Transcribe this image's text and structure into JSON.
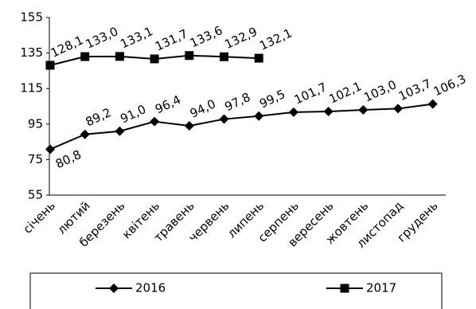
{
  "chart_data": {
    "type": "line",
    "categories": [
      "січень",
      "лютий",
      "березень",
      "квітень",
      "травень",
      "червень",
      "липень",
      "серпень",
      "вересень",
      "жовтень",
      "листопад",
      "грудень"
    ],
    "series": [
      {
        "name": "2016",
        "color": "#000000",
        "marker": "diamond",
        "values": [
          80.8,
          89.2,
          91.0,
          96.4,
          94.0,
          97.8,
          99.5,
          101.7,
          102.1,
          103.0,
          103.7,
          106.3
        ],
        "value_labels": [
          "80,8",
          "89,2",
          "91,0",
          "96,4",
          "94,0",
          "97,8",
          "99,5",
          "101,7",
          "102,1",
          "103,0",
          "103,7",
          "106,3"
        ]
      },
      {
        "name": "2017",
        "color": "#000000",
        "marker": "square",
        "values": [
          128.1,
          133.0,
          133.1,
          131.7,
          133.6,
          132.9,
          132.1,
          null,
          null,
          null,
          null,
          null
        ],
        "value_labels": [
          "128,1",
          "133,0",
          "133,1",
          "131,7",
          "133,6",
          "132,9",
          "132,1",
          null,
          null,
          null,
          null,
          null
        ]
      }
    ],
    "ylim": [
      55,
      155
    ],
    "yticks": [
      55,
      75,
      95,
      115,
      135,
      155
    ],
    "grid": false,
    "legend": "bottom"
  }
}
